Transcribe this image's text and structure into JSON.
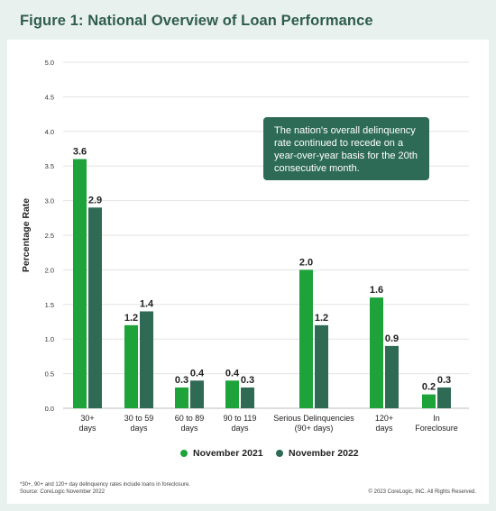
{
  "title": "Figure 1: National Overview of Loan Performance",
  "callout": "The nation's overall delinquency rate continued to recede on a year-over-year basis for the 20th consecutive month.",
  "footnote": {
    "line1": "*30+, 90+ and 120+ day delinquency rates include loans in foreclosure.",
    "line2": "Source: CoreLogic November 2022"
  },
  "copyright": "© 2023 CoreLogic, INC. All Rights Reserved.",
  "colors": {
    "series1": "#1da33a",
    "series2": "#2f6a55",
    "grid": "#e3e3e3",
    "title": "#2f5d4d",
    "callout_bg": "#2e6b56"
  },
  "chart_data": {
    "type": "bar",
    "ylabel": "Percentage Rate",
    "ylim": [
      0,
      5
    ],
    "yticks": [
      "0.0",
      "0.5",
      "1.0",
      "1.5",
      "2.0",
      "2.5",
      "3.0",
      "3.5",
      "4.0",
      "4.5",
      "5.0"
    ],
    "grid": true,
    "legend_position": "bottom",
    "categories": [
      [
        "30+",
        "days"
      ],
      [
        "30 to 59",
        "days"
      ],
      [
        "60 to 89",
        "days"
      ],
      [
        "90 to 119",
        "days"
      ],
      [
        "Serious Delinquencies",
        "(90+ days)"
      ],
      [
        "120+",
        "days"
      ],
      [
        "In",
        "Foreclosure"
      ]
    ],
    "series": [
      {
        "name": "November 2021",
        "values": [
          3.6,
          1.2,
          0.3,
          0.4,
          2.0,
          1.6,
          0.2
        ],
        "labels": [
          "3.6",
          "1.2",
          "0.3",
          "0.4",
          "2.0",
          "1.6",
          "0.2"
        ]
      },
      {
        "name": "November 2022",
        "values": [
          2.9,
          1.4,
          0.4,
          0.3,
          1.2,
          0.9,
          0.3
        ],
        "labels": [
          "2.9",
          "1.4",
          "0.4",
          "0.3",
          "1.2",
          "0.9",
          "0.3"
        ]
      }
    ]
  }
}
